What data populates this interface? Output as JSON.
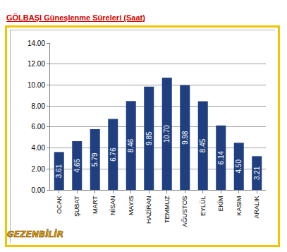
{
  "chart_data": {
    "type": "bar",
    "title": "GÖLBAŞI Güneşlenme Süreleri (Saat)",
    "categories": [
      "OCAK",
      "ŞUBAT",
      "MART",
      "NİSAN",
      "MAYIS",
      "HAZİRAN",
      "TEMMUZ",
      "AĞUSTOS",
      "EYLÜL",
      "EKİM",
      "KASIM",
      "ARALIK"
    ],
    "values": [
      3.61,
      4.65,
      5.79,
      6.76,
      8.46,
      9.85,
      10.7,
      9.98,
      8.45,
      6.14,
      4.5,
      3.21
    ],
    "value_labels": [
      "3.61",
      "4.65",
      "5.79",
      "6.76",
      "8.46",
      "9.85",
      "10.70",
      "9.98",
      "8.45",
      "6.14",
      "4.50",
      "3.21"
    ],
    "data_labels": true,
    "color": "#1f3f80",
    "ylim": [
      0,
      14
    ],
    "yticks": [
      {
        "value": 0,
        "label": "0.00"
      },
      {
        "value": 2,
        "label": "2.00"
      },
      {
        "value": 4,
        "label": "4.00"
      },
      {
        "value": 6,
        "label": "6.00"
      },
      {
        "value": 8,
        "label": "8.00"
      },
      {
        "value": 10,
        "label": "10.00"
      },
      {
        "value": 12,
        "label": "12.00"
      },
      {
        "value": 14,
        "label": "14.00"
      }
    ],
    "grid": true,
    "annotations": [
      "GEZENBİLİR"
    ]
  }
}
